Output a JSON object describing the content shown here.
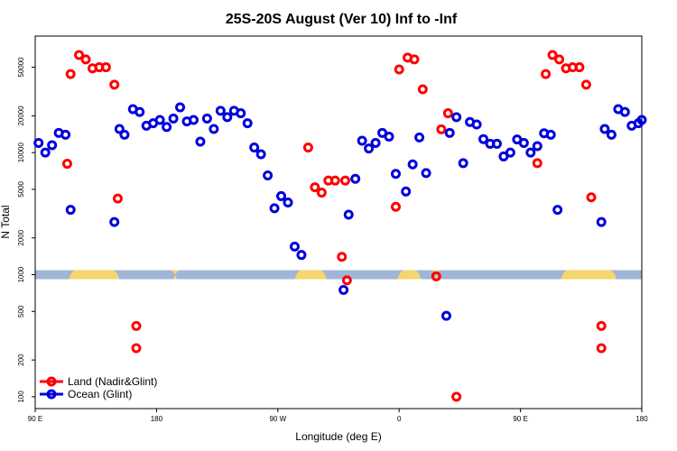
{
  "chart_data": {
    "type": "scatter",
    "title": "25S-20S August (Ver 10)   Inf to -Inf",
    "xlabel": "Longitude (deg E)",
    "ylabel": "N Total",
    "xlim": [
      90,
      450
    ],
    "ylim_log": [
      80,
      90000
    ],
    "x_ticks": [
      {
        "value": 90,
        "label": "90 E"
      },
      {
        "value": 162,
        "label": "180"
      },
      {
        "value": 234,
        "label": "90 W"
      },
      {
        "value": 306,
        "label": "0"
      },
      {
        "value": 378,
        "label": "90 E"
      },
      {
        "value": 450,
        "label": "180"
      }
    ],
    "y_ticks": [
      {
        "value": 100,
        "label": "100"
      },
      {
        "value": 200,
        "label": "200"
      },
      {
        "value": 500,
        "label": "500"
      },
      {
        "value": 1000,
        "label": "1000"
      },
      {
        "value": 2000,
        "label": "2000"
      },
      {
        "value": 5000,
        "label": "5000"
      },
      {
        "value": 10000,
        "label": "10000"
      },
      {
        "value": 20000,
        "label": "20000"
      },
      {
        "value": 50000,
        "label": "50000"
      }
    ],
    "band": {
      "value": 1000,
      "ocean_color": "#9fb6d8",
      "land_color": "#f5d56e",
      "land_ranges": [
        [
          110,
          140
        ],
        [
          172,
          174
        ],
        [
          244,
          263
        ],
        [
          305,
          319
        ],
        [
          327,
          329
        ],
        [
          402,
          435
        ]
      ]
    },
    "series": [
      {
        "name": "Land (Nadir&Glint)",
        "color": "#ff0000",
        "points": [
          [
            109,
            8100
          ],
          [
            111,
            44000
          ],
          [
            116,
            63000
          ],
          [
            120,
            58000
          ],
          [
            124,
            49000
          ],
          [
            128,
            50000
          ],
          [
            132,
            50000
          ],
          [
            137,
            36000
          ],
          [
            139,
            4200
          ],
          [
            150,
            380
          ],
          [
            150,
            250
          ],
          [
            252,
            11000
          ],
          [
            256,
            5200
          ],
          [
            260,
            4700
          ],
          [
            264,
            5900
          ],
          [
            268,
            5900
          ],
          [
            272,
            1400
          ],
          [
            274,
            5900
          ],
          [
            275,
            900
          ],
          [
            304,
            3600
          ],
          [
            306,
            48000
          ],
          [
            311,
            60000
          ],
          [
            315,
            58000
          ],
          [
            320,
            33000
          ],
          [
            328,
            970
          ],
          [
            331,
            15500
          ],
          [
            335,
            21000
          ],
          [
            340,
            100
          ],
          [
            388,
            8200
          ],
          [
            393,
            44000
          ],
          [
            397,
            63000
          ],
          [
            401,
            58000
          ],
          [
            405,
            49000
          ],
          [
            409,
            50000
          ],
          [
            413,
            50000
          ],
          [
            417,
            36000
          ],
          [
            420,
            4300
          ],
          [
            426,
            380
          ],
          [
            426,
            250
          ]
        ]
      },
      {
        "name": "Ocean (Glint)",
        "color": "#0000dd",
        "points": [
          [
            92,
            12000
          ],
          [
            96,
            10000
          ],
          [
            100,
            11500
          ],
          [
            104,
            14500
          ],
          [
            108,
            14000
          ],
          [
            111,
            3400
          ],
          [
            137,
            2700
          ],
          [
            140,
            15600
          ],
          [
            143,
            14000
          ],
          [
            148,
            22700
          ],
          [
            152,
            21500
          ],
          [
            156,
            16600
          ],
          [
            160,
            17400
          ],
          [
            164,
            18500
          ],
          [
            168,
            16200
          ],
          [
            172,
            19000
          ],
          [
            176,
            23500
          ],
          [
            180,
            18000
          ],
          [
            184,
            18500
          ],
          [
            188,
            12300
          ],
          [
            192,
            19000
          ],
          [
            196,
            15600
          ],
          [
            200,
            22000
          ],
          [
            204,
            19500
          ],
          [
            208,
            22000
          ],
          [
            212,
            21000
          ],
          [
            216,
            17400
          ],
          [
            220,
            11000
          ],
          [
            224,
            9700
          ],
          [
            228,
            6500
          ],
          [
            232,
            3500
          ],
          [
            236,
            4400
          ],
          [
            240,
            3900
          ],
          [
            244,
            1700
          ],
          [
            248,
            1450
          ],
          [
            273,
            750
          ],
          [
            276,
            3100
          ],
          [
            280,
            6100
          ],
          [
            284,
            12500
          ],
          [
            288,
            10800
          ],
          [
            292,
            12000
          ],
          [
            296,
            14500
          ],
          [
            300,
            13500
          ],
          [
            304,
            6700
          ],
          [
            310,
            4800
          ],
          [
            314,
            8000
          ],
          [
            318,
            13300
          ],
          [
            322,
            6800
          ],
          [
            334,
            460
          ],
          [
            336,
            14500
          ],
          [
            340,
            19500
          ],
          [
            344,
            8200
          ],
          [
            348,
            17800
          ],
          [
            352,
            17000
          ],
          [
            356,
            12900
          ],
          [
            360,
            11800
          ],
          [
            364,
            11800
          ],
          [
            368,
            9300
          ],
          [
            372,
            10000
          ],
          [
            376,
            12800
          ],
          [
            380,
            12000
          ],
          [
            384,
            10000
          ],
          [
            388,
            11300
          ],
          [
            392,
            14400
          ],
          [
            396,
            14000
          ],
          [
            400,
            3400
          ],
          [
            426,
            2700
          ],
          [
            428,
            15600
          ],
          [
            432,
            14000
          ],
          [
            436,
            22700
          ],
          [
            440,
            21500
          ],
          [
            444,
            16600
          ],
          [
            448,
            17400
          ],
          [
            450,
            18500
          ]
        ]
      }
    ],
    "legend_position": "bottom-left"
  }
}
